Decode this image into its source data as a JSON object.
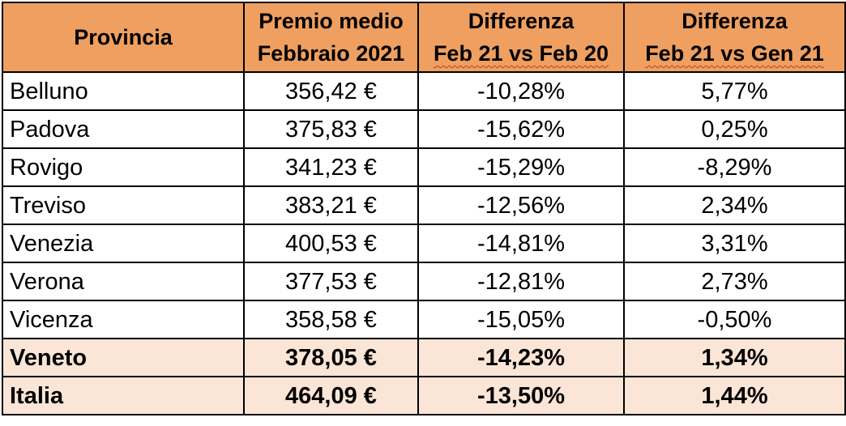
{
  "header": {
    "col1": "Provincia",
    "col2_line1": "Premio medio",
    "col2_line2": "Febbraio 2021",
    "col3_line1": "Differenza",
    "col3_line2": "Feb 21 vs Feb 20",
    "col4_line1": "Differenza",
    "col4_line2": "Feb 21 vs Gen 21"
  },
  "rows": [
    {
      "provincia": "Belluno",
      "premio": "356,42 €",
      "diff_anno": "-10,28%",
      "diff_mese": "5,77%"
    },
    {
      "provincia": "Padova",
      "premio": "375,83 €",
      "diff_anno": "-15,62%",
      "diff_mese": "0,25%"
    },
    {
      "provincia": "Rovigo",
      "premio": "341,23 €",
      "diff_anno": "-15,29%",
      "diff_mese": "-8,29%"
    },
    {
      "provincia": "Treviso",
      "premio": "383,21 €",
      "diff_anno": "-12,56%",
      "diff_mese": "2,34%"
    },
    {
      "provincia": "Venezia",
      "premio": "400,53 €",
      "diff_anno": "-14,81%",
      "diff_mese": "3,31%"
    },
    {
      "provincia": "Verona",
      "premio": "377,53 €",
      "diff_anno": "-12,81%",
      "diff_mese": "2,73%"
    },
    {
      "provincia": "Vicenza",
      "premio": "358,58 €",
      "diff_anno": "-15,05%",
      "diff_mese": "-0,50%"
    }
  ],
  "totals": [
    {
      "provincia": "Veneto",
      "premio": "378,05 €",
      "diff_anno": "-14,23%",
      "diff_mese": "1,34%"
    },
    {
      "provincia": "Italia",
      "premio": "464,09 €",
      "diff_anno": "-13,50%",
      "diff_mese": "1,44%"
    }
  ],
  "colors": {
    "header_bg": "#ef9f60",
    "total_row_bg": "#fbe5d6",
    "spellcheck_underline": "#c0392b"
  }
}
